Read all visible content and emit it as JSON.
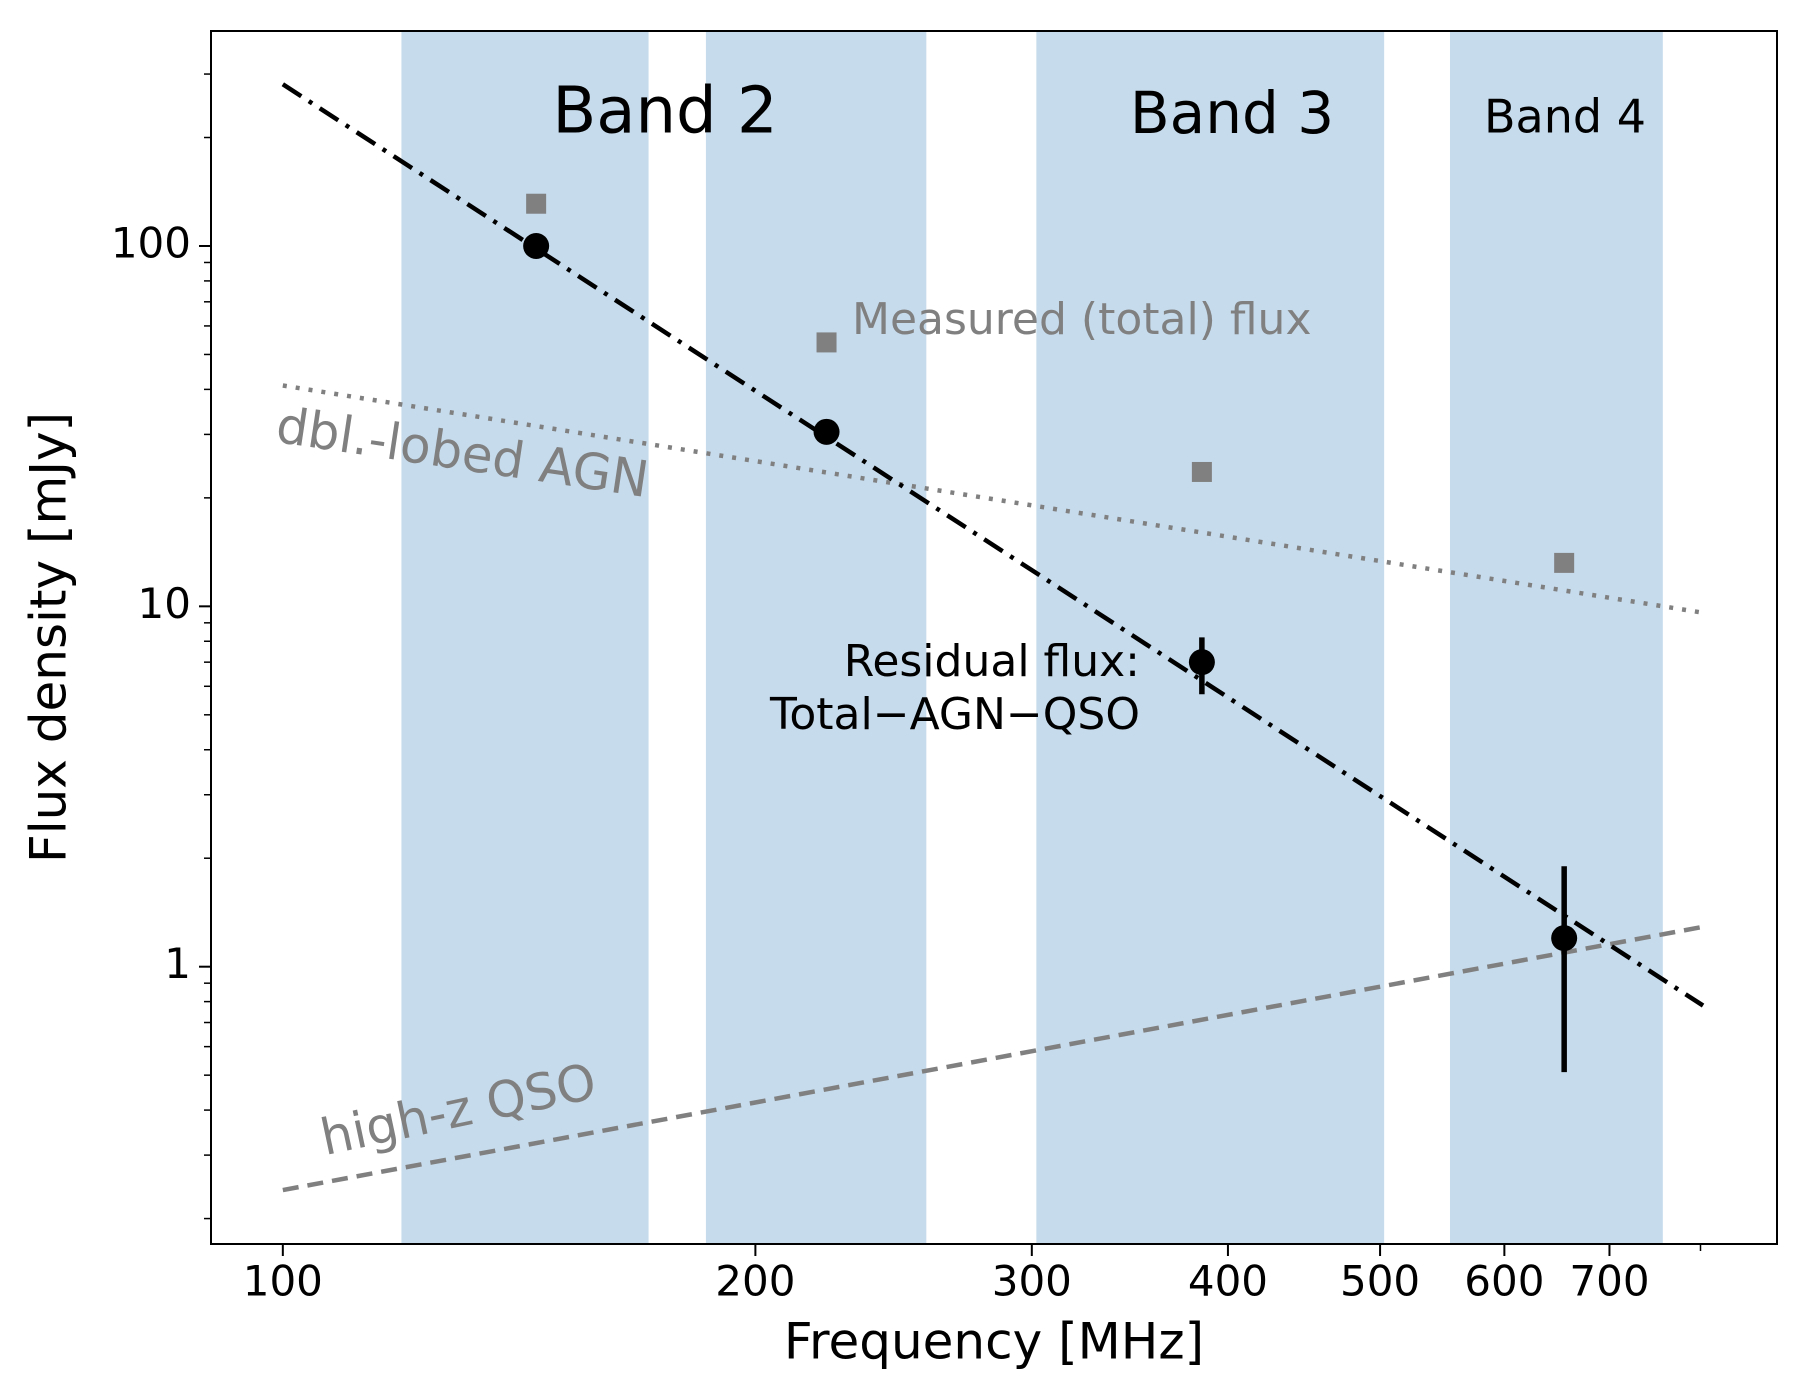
{
  "chart_data": {
    "type": "scatter",
    "x_label": "Frequency [MHz]",
    "y_label": "Flux density [mJy]",
    "log_x": true,
    "log_y": true,
    "xlim": [
      90,
      895
    ],
    "ylim": [
      0.17,
      395
    ],
    "xticks": [
      100,
      200,
      300,
      400,
      500,
      600,
      700
    ],
    "xticks_minor": [
      800
    ],
    "yticks": [
      1,
      10,
      100
    ],
    "yticks_minor": [
      0.2,
      0.3,
      0.4,
      0.5,
      0.6,
      0.7,
      0.8,
      0.9,
      2,
      3,
      4,
      5,
      6,
      7,
      8,
      9,
      20,
      30,
      40,
      50,
      60,
      70,
      80,
      90,
      200,
      300
    ],
    "band_color": "#c6dbec",
    "shaded_bands": [
      [
        119,
        171
      ],
      [
        186,
        257
      ],
      [
        302,
        503
      ],
      [
        554,
        757
      ]
    ],
    "band_labels": [
      "Band 2",
      "Band 3",
      "Band 4"
    ],
    "annotations": [
      "Measured (total) flux",
      "Residual flux:",
      "Total−AGN−QSO",
      "dbl.-lobed AGN",
      "high-z QSO"
    ],
    "series": [
      {
        "style": "dotted",
        "color": "#808080",
        "x": [
          100,
          803
        ],
        "values": [
          41,
          9.6
        ]
      },
      {
        "style": "dashed",
        "color": "#808080",
        "x": [
          100,
          803
        ],
        "values": [
          0.24,
          1.29
        ]
      },
      {
        "style": "dashdot",
        "color": "#000000",
        "x": [
          100,
          803
        ],
        "values": [
          281,
          0.78
        ]
      },
      {
        "style": "square",
        "color": "#808080",
        "x": [
          145,
          222,
          385,
          655
        ],
        "values": [
          131,
          54,
          23.6,
          13.2
        ]
      },
      {
        "style": "circle",
        "color": "#000000",
        "x": [
          145,
          222,
          385,
          655
        ],
        "values": [
          100,
          30.5,
          7.0,
          1.2
        ],
        "err_low": [
          null,
          null,
          1.3,
          0.69
        ],
        "err_high": [
          null,
          null,
          1.2,
          0.7
        ]
      }
    ]
  }
}
